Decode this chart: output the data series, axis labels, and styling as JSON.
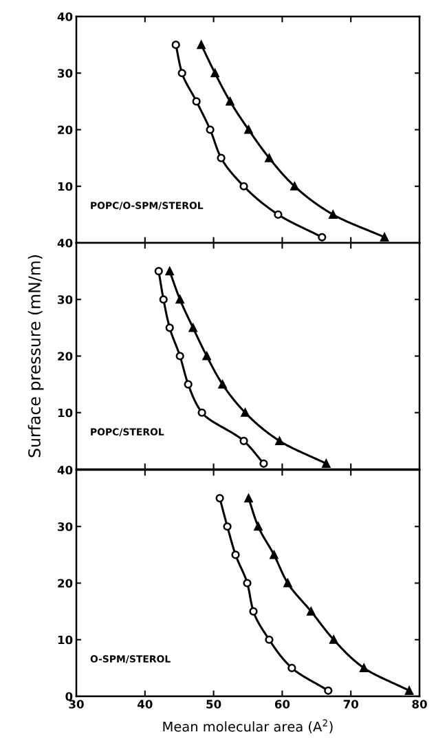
{
  "chart_data": [
    {
      "type": "line",
      "annotations": [
        "POPC/O-SPM/STEROL"
      ],
      "xlim": [
        30,
        80
      ],
      "xticks": [
        30,
        40,
        50,
        60,
        70,
        80
      ],
      "ylim": [
        0,
        40
      ],
      "yticks": [
        {
          "value": 0,
          "label": null
        },
        10,
        20,
        30,
        40
      ],
      "tick_labels": "y",
      "line_style": "solid",
      "series": [
        {
          "color": "#000000",
          "marker": "circle",
          "x": [
            44.5,
            45.4,
            47.5,
            49.5,
            51.1,
            54.4,
            59.4,
            65.8
          ],
          "values": [
            35,
            30,
            25,
            20,
            15,
            10,
            5,
            1
          ]
        },
        {
          "color": "#000000",
          "marker": "triangle",
          "x": [
            48.2,
            50.2,
            52.4,
            55.1,
            58.1,
            61.8,
            67.4,
            74.9
          ],
          "values": [
            35,
            30,
            25,
            20,
            15,
            10,
            5,
            1
          ]
        }
      ]
    },
    {
      "type": "line",
      "ylabel": "Surface pressure (mN/m)",
      "annotations": [
        "POPC/STEROL"
      ],
      "xlim": [
        30,
        80
      ],
      "xticks": [
        30,
        40,
        50,
        60,
        70,
        80
      ],
      "ylim": [
        0,
        40
      ],
      "yticks": [
        {
          "value": 0,
          "label": null
        },
        10,
        20,
        30,
        40
      ],
      "tick_labels": "y",
      "line_style": "solid",
      "series": [
        {
          "color": "#000000",
          "marker": "circle",
          "x": [
            42.0,
            42.7,
            43.6,
            45.1,
            46.3,
            48.3,
            54.4,
            57.3
          ],
          "values": [
            35,
            30,
            25,
            20,
            15,
            10,
            5,
            1
          ]
        },
        {
          "color": "#000000",
          "marker": "triangle",
          "x": [
            43.6,
            45.1,
            47.0,
            49.0,
            51.3,
            54.6,
            59.6,
            66.4
          ],
          "values": [
            35,
            30,
            25,
            20,
            15,
            10,
            5,
            1
          ]
        }
      ]
    },
    {
      "type": "line",
      "xlabel": "Mean molecular area (A$^{2}$)",
      "annotations": [
        "O-SPM/STEROL"
      ],
      "xlim": [
        30,
        80
      ],
      "xticks": [
        30,
        40,
        50,
        60,
        70,
        80
      ],
      "ylim": [
        0,
        40
      ],
      "yticks": [
        0,
        10,
        20,
        30,
        40
      ],
      "line_style": "solid",
      "series": [
        {
          "color": "#000000",
          "marker": "circle",
          "x": [
            50.9,
            52.0,
            53.2,
            54.9,
            55.8,
            58.1,
            61.4,
            66.7
          ],
          "values": [
            35,
            30,
            25,
            20,
            15,
            10,
            5,
            1
          ]
        },
        {
          "color": "#000000",
          "marker": "triangle",
          "x": [
            55.1,
            56.5,
            58.8,
            60.8,
            64.2,
            67.5,
            71.9,
            78.5
          ],
          "values": [
            35,
            30,
            25,
            20,
            15,
            10,
            5,
            1
          ]
        }
      ]
    }
  ]
}
